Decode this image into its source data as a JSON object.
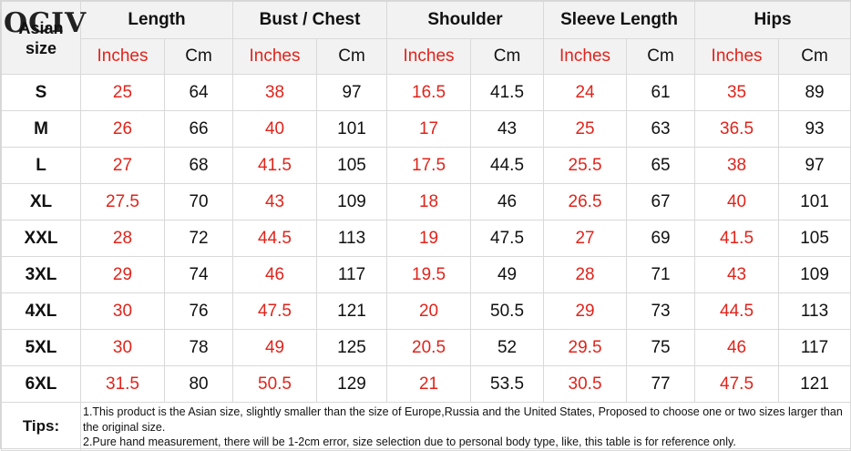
{
  "logo": "OCIV",
  "header": {
    "size_label": "Asian size",
    "groups": [
      "Length",
      "Bust / Chest",
      "Shoulder",
      "Sleeve Length",
      "Hips"
    ],
    "unit_inches": "Inches",
    "unit_cm": "Cm"
  },
  "rows": [
    {
      "size": "S",
      "vals": [
        "25",
        "64",
        "38",
        "97",
        "16.5",
        "41.5",
        "24",
        "61",
        "35",
        "89"
      ]
    },
    {
      "size": "M",
      "vals": [
        "26",
        "66",
        "40",
        "101",
        "17",
        "43",
        "25",
        "63",
        "36.5",
        "93"
      ]
    },
    {
      "size": "L",
      "vals": [
        "27",
        "68",
        "41.5",
        "105",
        "17.5",
        "44.5",
        "25.5",
        "65",
        "38",
        "97"
      ]
    },
    {
      "size": "XL",
      "vals": [
        "27.5",
        "70",
        "43",
        "109",
        "18",
        "46",
        "26.5",
        "67",
        "40",
        "101"
      ]
    },
    {
      "size": "XXL",
      "vals": [
        "28",
        "72",
        "44.5",
        "113",
        "19",
        "47.5",
        "27",
        "69",
        "41.5",
        "105"
      ]
    },
    {
      "size": "3XL",
      "vals": [
        "29",
        "74",
        "46",
        "117",
        "19.5",
        "49",
        "28",
        "71",
        "43",
        "109"
      ]
    },
    {
      "size": "4XL",
      "vals": [
        "30",
        "76",
        "47.5",
        "121",
        "20",
        "50.5",
        "29",
        "73",
        "44.5",
        "113"
      ]
    },
    {
      "size": "5XL",
      "vals": [
        "30",
        "78",
        "49",
        "125",
        "20.5",
        "52",
        "29.5",
        "75",
        "46",
        "117"
      ]
    },
    {
      "size": "6XL",
      "vals": [
        "31.5",
        "80",
        "50.5",
        "129",
        "21",
        "53.5",
        "30.5",
        "77",
        "47.5",
        "121"
      ]
    }
  ],
  "tips": {
    "label": "Tips:",
    "line1": "1.This product is the Asian size, slightly smaller than the size of Europe,Russia and the United States, Proposed to choose one or two sizes larger than the original size.",
    "line2": "2.Pure hand measurement, there will be 1-2cm error, size selection due to personal body type, like, this table is for reference only."
  }
}
